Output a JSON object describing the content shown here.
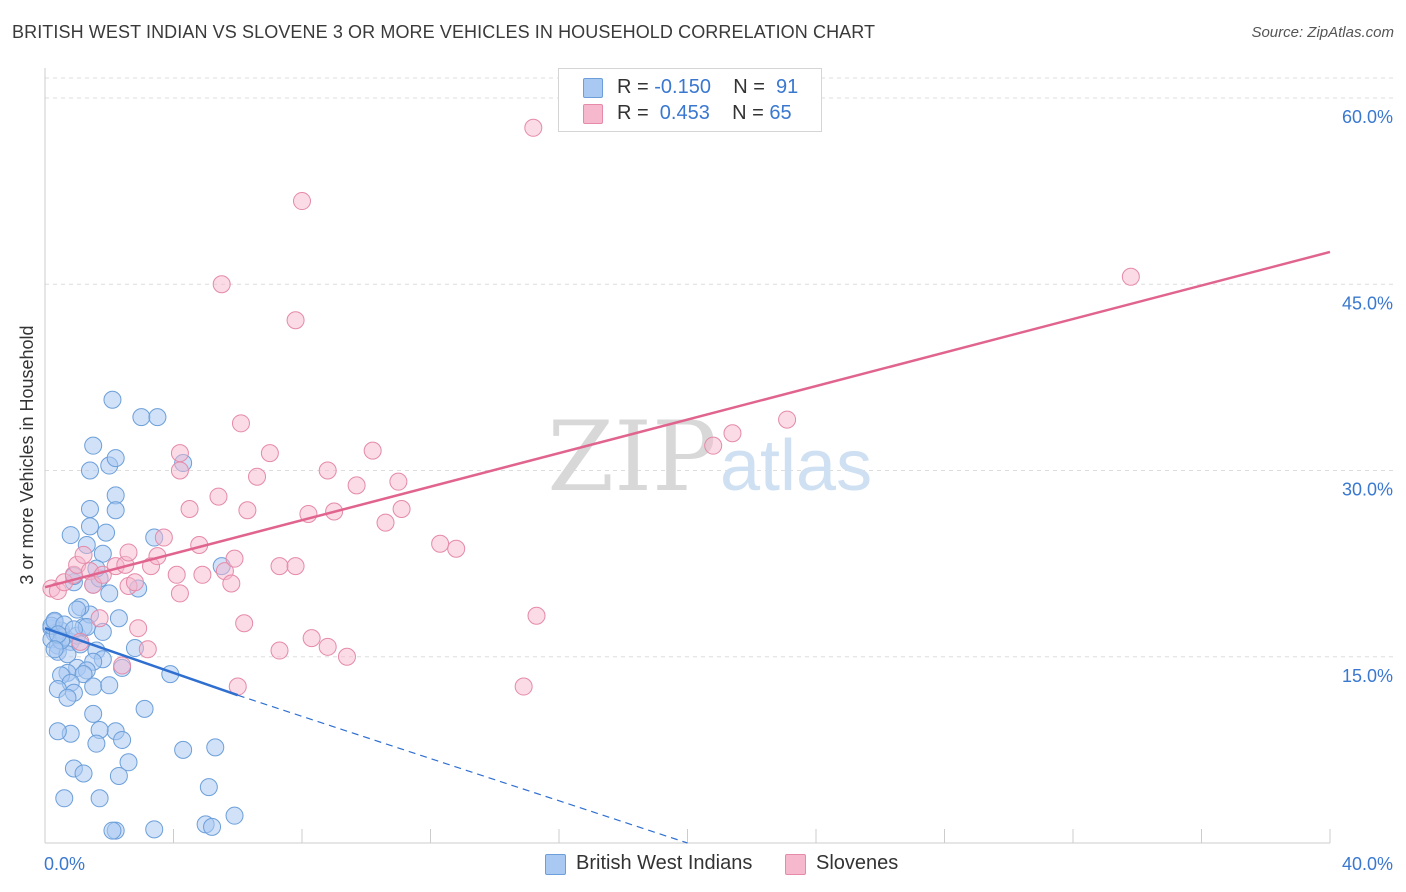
{
  "title": "BRITISH WEST INDIAN VS SLOVENE 3 OR MORE VEHICLES IN HOUSEHOLD CORRELATION CHART",
  "source": "Source: ZipAtlas.com",
  "watermark": {
    "zip": "ZIP",
    "atlas": "atlas"
  },
  "legend_top": {
    "rows": [
      {
        "r_label": "R = ",
        "r_value": "-0.150",
        "n_label": "N = ",
        "n_value": "91"
      },
      {
        "r_label": "R = ",
        "r_value": " 0.453",
        "n_label": "N = ",
        "n_value": "65"
      }
    ]
  },
  "colors": {
    "blue_fill": "#a9c9f2",
    "blue_stroke": "#6c9fd9",
    "blue_line": "#2f6fd0",
    "pink_fill": "#f6b8cd",
    "pink_stroke": "#e58aa9",
    "pink_line": "#e0648e",
    "axis_text": "#3a78d0",
    "grid": "#dddddd"
  },
  "chart_data": {
    "type": "scatter",
    "title": "BRITISH WEST INDIAN VS SLOVENE 3 OR MORE VEHICLES IN HOUSEHOLD CORRELATION CHART",
    "xlabel": "",
    "ylabel": "3 or more Vehicles in Household",
    "xlim": [
      0,
      40
    ],
    "ylim": [
      0,
      60
    ],
    "x_tick_labels": [
      {
        "value": 0,
        "label": "0.0%"
      },
      {
        "value": 40,
        "label": "40.0%"
      }
    ],
    "y_tick_labels": [
      {
        "value": 15,
        "label": "15.0%"
      },
      {
        "value": 30,
        "label": "30.0%"
      },
      {
        "value": 45,
        "label": "45.0%"
      },
      {
        "value": 60,
        "label": "60.0%"
      }
    ],
    "series": [
      {
        "name": "British West Indians",
        "r": -0.15,
        "n": 91,
        "trend": {
          "x0": 0,
          "y0": 17.3,
          "x1": 6.0,
          "y1": 11.9,
          "dash_to_x": 20.0,
          "dash_to_y": 0
        },
        "points": [
          [
            0.2,
            17.3
          ],
          [
            0.3,
            16.9
          ],
          [
            0.2,
            16.4
          ],
          [
            0.4,
            15.9
          ],
          [
            0.3,
            17.8
          ],
          [
            0.5,
            17.1
          ],
          [
            0.6,
            16.6
          ],
          [
            0.8,
            16.2
          ],
          [
            0.4,
            15.4
          ],
          [
            0.7,
            15.2
          ],
          [
            1.0,
            16.7
          ],
          [
            1.2,
            17.4
          ],
          [
            1.4,
            18.4
          ],
          [
            1.1,
            19.0
          ],
          [
            0.9,
            21.0
          ],
          [
            0.9,
            21.5
          ],
          [
            0.8,
            24.8
          ],
          [
            1.3,
            24.0
          ],
          [
            1.4,
            25.5
          ],
          [
            1.4,
            26.9
          ],
          [
            1.9,
            25.0
          ],
          [
            1.8,
            23.3
          ],
          [
            2.2,
            28.0
          ],
          [
            2.2,
            26.8
          ],
          [
            2.0,
            30.4
          ],
          [
            2.2,
            31.0
          ],
          [
            1.4,
            30.0
          ],
          [
            1.5,
            32.0
          ],
          [
            2.1,
            35.7
          ],
          [
            3.0,
            34.3
          ],
          [
            3.5,
            34.3
          ],
          [
            4.3,
            30.6
          ],
          [
            3.4,
            24.6
          ],
          [
            5.5,
            22.3
          ],
          [
            2.9,
            20.5
          ],
          [
            2.0,
            20.1
          ],
          [
            1.5,
            20.8
          ],
          [
            1.7,
            21.3
          ],
          [
            1.6,
            22.1
          ],
          [
            1.8,
            17.0
          ],
          [
            1.3,
            17.4
          ],
          [
            1.6,
            15.5
          ],
          [
            1.8,
            14.8
          ],
          [
            1.5,
            14.6
          ],
          [
            1.0,
            14.1
          ],
          [
            1.3,
            13.9
          ],
          [
            0.7,
            13.7
          ],
          [
            1.2,
            13.6
          ],
          [
            0.5,
            13.5
          ],
          [
            0.8,
            12.9
          ],
          [
            0.4,
            12.4
          ],
          [
            0.9,
            12.1
          ],
          [
            1.5,
            12.6
          ],
          [
            2.0,
            12.7
          ],
          [
            0.7,
            11.7
          ],
          [
            1.5,
            10.4
          ],
          [
            2.2,
            9.0
          ],
          [
            1.7,
            9.1
          ],
          [
            0.8,
            8.8
          ],
          [
            0.4,
            9.0
          ],
          [
            2.4,
            8.3
          ],
          [
            1.6,
            8.0
          ],
          [
            2.6,
            6.5
          ],
          [
            0.9,
            6.0
          ],
          [
            1.2,
            5.6
          ],
          [
            2.3,
            5.4
          ],
          [
            0.6,
            3.6
          ],
          [
            1.7,
            3.6
          ],
          [
            4.3,
            7.5
          ],
          [
            5.3,
            7.7
          ],
          [
            5.1,
            4.5
          ],
          [
            5.9,
            2.2
          ],
          [
            5.0,
            1.5
          ],
          [
            5.2,
            1.3
          ],
          [
            3.4,
            1.1
          ],
          [
            2.2,
            1.0
          ],
          [
            2.1,
            1.0
          ],
          [
            3.9,
            13.6
          ],
          [
            3.1,
            10.8
          ],
          [
            2.4,
            14.1
          ],
          [
            2.8,
            15.7
          ],
          [
            0.2,
            17.5
          ],
          [
            0.3,
            17.9
          ],
          [
            0.5,
            16.3
          ],
          [
            0.6,
            17.6
          ],
          [
            0.9,
            17.2
          ],
          [
            1.1,
            16.0
          ],
          [
            0.4,
            16.8
          ],
          [
            0.3,
            15.6
          ],
          [
            1.0,
            18.8
          ],
          [
            2.3,
            18.1
          ]
        ]
      },
      {
        "name": "Slovenes",
        "r": 0.453,
        "n": 65,
        "trend": {
          "x0": 0,
          "y0": 20.6,
          "x1": 40.0,
          "y1": 47.6
        },
        "points": [
          [
            0.2,
            20.5
          ],
          [
            0.4,
            20.3
          ],
          [
            0.6,
            21.0
          ],
          [
            0.9,
            21.6
          ],
          [
            1.0,
            22.4
          ],
          [
            1.2,
            23.2
          ],
          [
            1.4,
            21.9
          ],
          [
            1.5,
            20.8
          ],
          [
            1.8,
            21.6
          ],
          [
            2.2,
            22.3
          ],
          [
            2.5,
            22.4
          ],
          [
            2.6,
            20.7
          ],
          [
            2.8,
            21.0
          ],
          [
            3.3,
            22.3
          ],
          [
            3.5,
            23.1
          ],
          [
            3.7,
            24.6
          ],
          [
            2.6,
            23.4
          ],
          [
            4.1,
            21.6
          ],
          [
            4.2,
            20.1
          ],
          [
            4.8,
            24.0
          ],
          [
            4.9,
            21.6
          ],
          [
            5.6,
            21.9
          ],
          [
            5.8,
            20.9
          ],
          [
            5.9,
            22.9
          ],
          [
            5.4,
            27.9
          ],
          [
            4.5,
            26.9
          ],
          [
            6.3,
            26.8
          ],
          [
            4.2,
            30.0
          ],
          [
            4.2,
            31.4
          ],
          [
            6.6,
            29.5
          ],
          [
            7.0,
            31.4
          ],
          [
            6.1,
            33.8
          ],
          [
            7.3,
            22.3
          ],
          [
            7.8,
            22.3
          ],
          [
            8.2,
            26.5
          ],
          [
            9.0,
            26.7
          ],
          [
            8.8,
            30.0
          ],
          [
            9.7,
            28.8
          ],
          [
            10.2,
            31.6
          ],
          [
            11.1,
            26.9
          ],
          [
            10.6,
            25.8
          ],
          [
            11.0,
            29.1
          ],
          [
            12.3,
            24.1
          ],
          [
            12.8,
            23.7
          ],
          [
            8.3,
            16.5
          ],
          [
            8.8,
            15.8
          ],
          [
            9.4,
            15.0
          ],
          [
            7.3,
            15.5
          ],
          [
            6.2,
            17.7
          ],
          [
            6.0,
            12.6
          ],
          [
            2.4,
            14.3
          ],
          [
            2.9,
            17.3
          ],
          [
            3.2,
            15.6
          ],
          [
            1.1,
            16.2
          ],
          [
            1.7,
            18.1
          ],
          [
            15.3,
            18.3
          ],
          [
            14.9,
            12.6
          ],
          [
            21.4,
            33.0
          ],
          [
            20.8,
            32.0
          ],
          [
            23.1,
            34.1
          ],
          [
            33.8,
            45.6
          ],
          [
            7.8,
            42.1
          ],
          [
            5.5,
            45.0
          ],
          [
            8.0,
            51.7
          ],
          [
            15.2,
            57.6
          ]
        ]
      }
    ]
  }
}
